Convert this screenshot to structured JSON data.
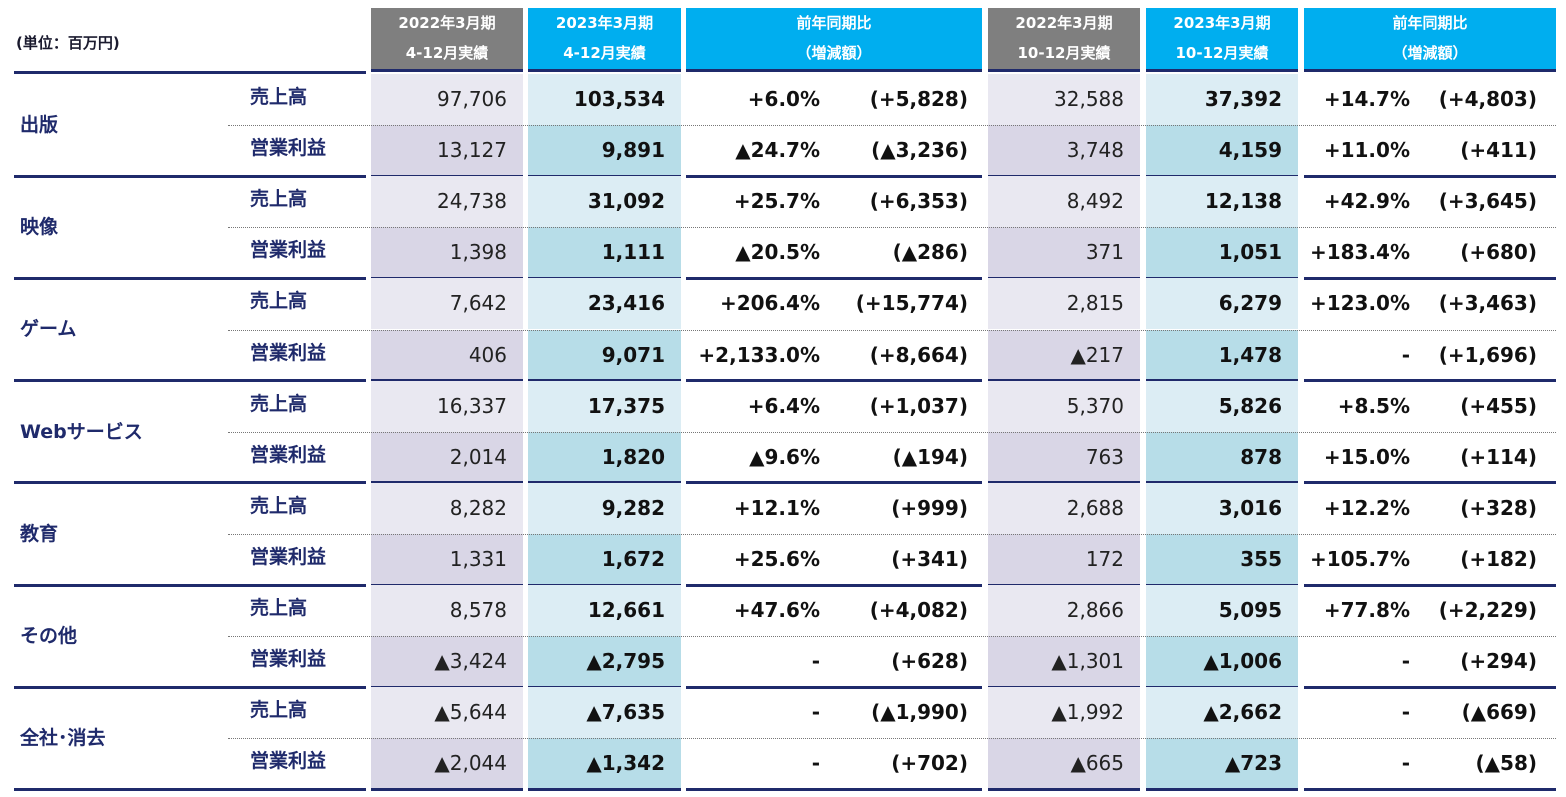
{
  "unit_label": "(単位：百万円)",
  "headers": [
    {
      "line1": "2022年3月期",
      "line2": "4-12月実績",
      "color": "#7f7f7f"
    },
    {
      "line1": "2023年3月期",
      "line2": "4-12月実績",
      "color": "#00aeef"
    },
    {
      "line1": "前年同期比",
      "line2": "（増減額）",
      "color": "#00aeef"
    },
    {
      "line1": "2022年3月期",
      "line2": "10-12月実績",
      "color": "#7f7f7f"
    },
    {
      "line1": "2023年3月期",
      "line2": "10-12月実績",
      "color": "#00aeef"
    },
    {
      "line1": "前年同期比",
      "line2": "（増減額）",
      "color": "#00aeef"
    }
  ],
  "segments": [
    {
      "name": "出版",
      "rows": [
        {
          "metric": "売上高",
          "v": [
            "97,706",
            "103,534",
            "+6.0%",
            "(+5,828)",
            "32,588",
            "37,392",
            "+14.7%",
            "(+4,803)"
          ]
        },
        {
          "metric": "営業利益",
          "v": [
            "13,127",
            "9,891",
            "▲24.7%",
            "(▲3,236)",
            "3,748",
            "4,159",
            "+11.0%",
            "(+411)"
          ]
        }
      ]
    },
    {
      "name": "映像",
      "rows": [
        {
          "metric": "売上高",
          "v": [
            "24,738",
            "31,092",
            "+25.7%",
            "(+6,353)",
            "8,492",
            "12,138",
            "+42.9%",
            "(+3,645)"
          ]
        },
        {
          "metric": "営業利益",
          "v": [
            "1,398",
            "1,111",
            "▲20.5%",
            "(▲286)",
            "371",
            "1,051",
            "+183.4%",
            "(+680)"
          ]
        }
      ]
    },
    {
      "name": "ゲーム",
      "rows": [
        {
          "metric": "売上高",
          "v": [
            "7,642",
            "23,416",
            "+206.4%",
            "(+15,774)",
            "2,815",
            "6,279",
            "+123.0%",
            "(+3,463)"
          ]
        },
        {
          "metric": "営業利益",
          "v": [
            "406",
            "9,071",
            "+2,133.0%",
            "(+8,664)",
            "▲217",
            "1,478",
            "-",
            "(+1,696)"
          ]
        }
      ]
    },
    {
      "name": "Webサービス",
      "rows": [
        {
          "metric": "売上高",
          "v": [
            "16,337",
            "17,375",
            "+6.4%",
            "(+1,037)",
            "5,370",
            "5,826",
            "+8.5%",
            "(+455)"
          ]
        },
        {
          "metric": "営業利益",
          "v": [
            "2,014",
            "1,820",
            "▲9.6%",
            "(▲194)",
            "763",
            "878",
            "+15.0%",
            "(+114)"
          ]
        }
      ]
    },
    {
      "name": "教育",
      "rows": [
        {
          "metric": "売上高",
          "v": [
            "8,282",
            "9,282",
            "+12.1%",
            "(+999)",
            "2,688",
            "3,016",
            "+12.2%",
            "(+328)"
          ]
        },
        {
          "metric": "営業利益",
          "v": [
            "1,331",
            "1,672",
            "+25.6%",
            "(+341)",
            "172",
            "355",
            "+105.7%",
            "(+182)"
          ]
        }
      ]
    },
    {
      "name": "その他",
      "rows": [
        {
          "metric": "売上高",
          "v": [
            "8,578",
            "12,661",
            "+47.6%",
            "(+4,082)",
            "2,866",
            "5,095",
            "+77.8%",
            "(+2,229)"
          ]
        },
        {
          "metric": "営業利益",
          "v": [
            "▲3,424",
            "▲2,795",
            "-",
            "(+628)",
            "▲1,301",
            "▲1,006",
            "-",
            "(+294)"
          ]
        }
      ]
    },
    {
      "name": "全社･消去",
      "rows": [
        {
          "metric": "売上高",
          "v": [
            "▲5,644",
            "▲7,635",
            "-",
            "(▲1,990)",
            "▲1,992",
            "▲2,662",
            "-",
            "(▲669)"
          ]
        },
        {
          "metric": "営業利益",
          "v": [
            "▲2,044",
            "▲1,342",
            "-",
            "(+702)",
            "▲665",
            "▲723",
            "-",
            "(▲58)"
          ]
        }
      ]
    }
  ],
  "colors": {
    "navy": "#1f2a6b",
    "prev_light": "#e9e8f1",
    "prev_dark": "#d9d6e6",
    "cur_light": "#dcedf4",
    "cur_dark": "#b7dde8"
  }
}
